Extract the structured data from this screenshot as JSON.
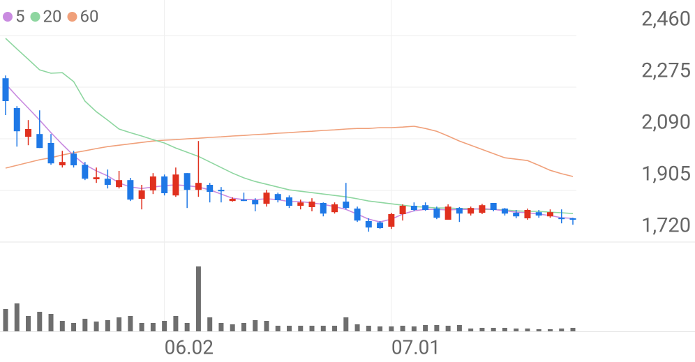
{
  "chart_data": {
    "type": "candlestick",
    "categories": [
      null,
      null,
      null,
      null,
      null,
      null,
      null,
      null,
      null,
      null,
      null,
      null,
      null,
      null,
      "06.02",
      null,
      null,
      null,
      null,
      null,
      null,
      null,
      null,
      null,
      null,
      null,
      null,
      null,
      null,
      null,
      null,
      null,
      null,
      null,
      "07.01",
      null,
      null,
      null,
      null,
      null,
      null,
      null,
      null,
      null,
      null,
      null,
      null,
      null,
      null,
      null,
      null
    ],
    "open": [
      2307,
      2200,
      2097,
      2107,
      2075,
      1995,
      2037,
      1997,
      1945,
      1947,
      1917,
      1942,
      1875,
      1905,
      1955,
      1887,
      1967,
      1907,
      1925,
      1907,
      1867,
      1872,
      1870,
      1857,
      1892,
      1880,
      1850,
      1845,
      1860,
      1827,
      1865,
      1840,
      1795,
      1790,
      1775,
      1820,
      1850,
      1852,
      1840,
      1800,
      1842,
      1822,
      1825,
      1860,
      1840,
      1825,
      1805,
      1827,
      1812,
      1807,
      1805
    ],
    "high": [
      2317,
      2207,
      2157,
      2192,
      2107,
      2047,
      2047,
      2007,
      1987,
      1980,
      1975,
      1950,
      1925,
      1967,
      1962,
      1987,
      1967,
      2082,
      1932,
      1917,
      1880,
      1897,
      1877,
      1907,
      1897,
      1887,
      1872,
      1877,
      1862,
      1862,
      1932,
      1847,
      1805,
      1795,
      1825,
      1855,
      1862,
      1862,
      1847,
      1855,
      1845,
      1847,
      1857,
      1860,
      1842,
      1835,
      1840,
      1835,
      1837,
      1837,
      1807
    ],
    "low": [
      2175,
      2062,
      2067,
      2057,
      1997,
      1987,
      1987,
      1942,
      1932,
      1912,
      1912,
      1867,
      1837,
      1892,
      1887,
      1882,
      1842,
      1882,
      1862,
      1862,
      1865,
      1867,
      1830,
      1847,
      1862,
      1842,
      1837,
      1830,
      1812,
      1822,
      1837,
      1792,
      1757,
      1767,
      1767,
      1797,
      1830,
      1832,
      1802,
      1800,
      1792,
      1815,
      1820,
      1830,
      1815,
      1805,
      1800,
      1807,
      1807,
      1787,
      1782
    ],
    "close": [
      2225,
      2117,
      2125,
      2057,
      2002,
      2007,
      1995,
      1947,
      1952,
      1925,
      1942,
      1872,
      1905,
      1955,
      1895,
      1962,
      1907,
      1932,
      1900,
      1902,
      1875,
      1867,
      1855,
      1897,
      1870,
      1850,
      1862,
      1865,
      1822,
      1855,
      1842,
      1797,
      1772,
      1770,
      1820,
      1850,
      1835,
      1835,
      1807,
      1847,
      1822,
      1842,
      1852,
      1835,
      1822,
      1812,
      1835,
      1815,
      1827,
      1802,
      1800
    ],
    "up_color": "#e0301e",
    "down_color": "#1e78e6",
    "series": [
      {
        "name": "5",
        "color": "#c98be0",
        "values": [
          2287,
          2242,
          2200,
          2157,
          2112,
          2070,
          2030,
          1997,
          1975,
          1957,
          1932,
          1917,
          1912,
          1917,
          1922,
          1925,
          1922,
          1917,
          1907,
          1892,
          1877,
          1872,
          1872,
          1875,
          1872,
          1865,
          1865,
          1860,
          1855,
          1847,
          1837,
          1820,
          1802,
          1792,
          1802,
          1820,
          1832,
          1837,
          1837,
          1835,
          1837,
          1837,
          1840,
          1837,
          1832,
          1827,
          1825,
          1820,
          1815,
          1807,
          1805
        ]
      },
      {
        "name": "20",
        "color": "#8ed6a0",
        "values": [
          2450,
          2412,
          2375,
          2337,
          2325,
          2327,
          2295,
          2225,
          2187,
          2157,
          2125,
          2112,
          2100,
          2087,
          2075,
          2057,
          2042,
          2027,
          2007,
          1987,
          1967,
          1950,
          1937,
          1927,
          1917,
          1907,
          1902,
          1897,
          1892,
          1887,
          1882,
          1875,
          1867,
          1862,
          1857,
          1852,
          1847,
          1845,
          1842,
          1842,
          1840,
          1840,
          1837,
          1837,
          1835,
          1832,
          1830,
          1830,
          1827,
          1825,
          1822
        ]
      },
      {
        "name": "60",
        "color": "#f0a07a",
        "values": [
          1985,
          1995,
          2005,
          2015,
          2022,
          2032,
          2040,
          2047,
          2055,
          2062,
          2067,
          2072,
          2077,
          2082,
          2085,
          2087,
          2090,
          2092,
          2095,
          2097,
          2100,
          2102,
          2105,
          2107,
          2110,
          2112,
          2115,
          2117,
          2120,
          2122,
          2125,
          2127,
          2127,
          2130,
          2130,
          2132,
          2135,
          2127,
          2117,
          2100,
          2082,
          2067,
          2052,
          2037,
          2022,
          2017,
          2012,
          1995,
          1977,
          1965,
          1955
        ]
      }
    ],
    "volume": {
      "color": "#6e6e6e",
      "values": [
        32,
        40,
        22,
        28,
        25,
        15,
        12,
        18,
        14,
        16,
        20,
        22,
        12,
        12,
        15,
        22,
        12,
        93,
        20,
        12,
        10,
        12,
        16,
        15,
        8,
        8,
        8,
        8,
        8,
        8,
        20,
        10,
        8,
        7,
        7,
        8,
        7,
        9,
        9,
        8,
        9,
        4,
        5,
        5,
        5,
        4,
        4,
        3,
        3,
        4,
        5
      ]
    },
    "ylim": [
      1720,
      2575
    ],
    "yticks": [
      {
        "value": 1720,
        "label": "1,720"
      },
      {
        "value": 1905,
        "label": "1,905"
      },
      {
        "value": 2090,
        "label": "2,090"
      },
      {
        "value": 2275,
        "label": "2,275"
      },
      {
        "value": 2460,
        "label": "2,460"
      }
    ],
    "grid": true
  }
}
